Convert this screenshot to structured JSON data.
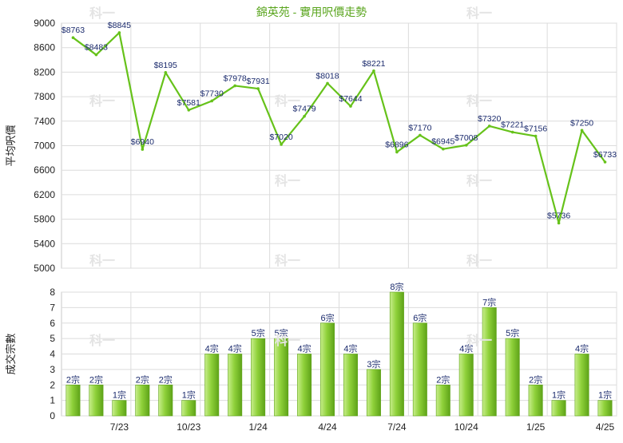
{
  "title": "錦英苑 - 實用呎價走勢",
  "watermark": "科一",
  "colors": {
    "title": "#5aa51e",
    "line": "#66c21a",
    "bar_light": "#c8ee8c",
    "bar_mid": "#8fd13a",
    "bar_dark": "#5ea318",
    "grid": "#dcdcdc",
    "axis_text": "#222222",
    "label_text": "#1a2a6c"
  },
  "chart_data": [
    {
      "type": "line",
      "ylabel": "平均呎價",
      "ylim": [
        5000,
        9000
      ],
      "yticks": [
        5000,
        5400,
        5800,
        6200,
        6600,
        7000,
        7400,
        7800,
        8200,
        8600,
        9000
      ],
      "values": [
        8763,
        8483,
        8845,
        6940,
        8195,
        7581,
        7730,
        7978,
        7931,
        7020,
        7479,
        8018,
        7644,
        8221,
        6896,
        7170,
        6945,
        7008,
        7320,
        7221,
        7156,
        5736,
        7250,
        6733
      ],
      "labels": [
        "$8763",
        "$8483",
        "$8845",
        "$6940",
        "$8195",
        "$7581",
        "$7730",
        "$7978",
        "$7931",
        "$7020",
        "$7479",
        "$8018",
        "$7644",
        "$8221",
        "$6896",
        "$7170",
        "$6945",
        "$7008",
        "$7320",
        "$7221",
        "$7156",
        "$5736",
        "$7250",
        "$6733"
      ]
    },
    {
      "type": "bar",
      "ylabel": "成交宗數",
      "ylim": [
        0,
        8
      ],
      "yticks": [
        0,
        1,
        2,
        3,
        4,
        5,
        6,
        7,
        8
      ],
      "values": [
        2,
        2,
        1,
        2,
        2,
        1,
        4,
        4,
        5,
        5,
        4,
        6,
        4,
        3,
        8,
        6,
        2,
        4,
        7,
        5,
        2,
        1,
        4,
        1
      ],
      "labels": [
        "2宗",
        "2宗",
        "1宗",
        "2宗",
        "2宗",
        "1宗",
        "4宗",
        "4宗",
        "5宗",
        "5宗",
        "4宗",
        "6宗",
        "4宗",
        "3宗",
        "8宗",
        "6宗",
        "2宗",
        "4宗",
        "7宗",
        "5宗",
        "2宗",
        "1宗",
        "4宗",
        "1宗"
      ],
      "x_tick_labels": [
        "7/23",
        "10/23",
        "1/24",
        "4/24",
        "7/24",
        "10/24",
        "1/25",
        "4/25"
      ],
      "x_tick_indices": [
        2,
        5,
        8,
        11,
        14,
        17,
        20,
        23
      ]
    }
  ]
}
